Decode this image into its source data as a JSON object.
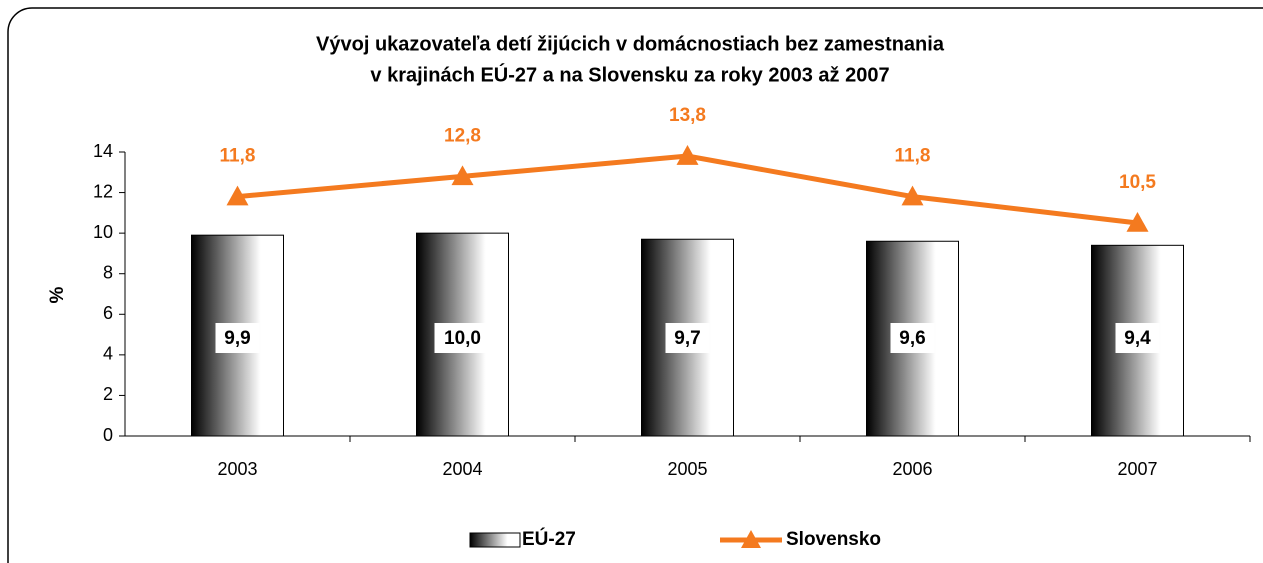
{
  "chart_data": {
    "type": "bar",
    "title": [
      "Vývoj ukazovateľa detí žijúcich v domácnostiach bez zamestnania",
      "v krajinách EÚ-27 a na Slovensku za roky 2003 až 2007"
    ],
    "y_label": "%",
    "categories": [
      "2003",
      "2004",
      "2005",
      "2006",
      "2007"
    ],
    "series": [
      {
        "name": "EÚ-27",
        "type": "bar",
        "color": "#000000",
        "values": [
          9.9,
          10.0,
          9.7,
          9.6,
          9.4
        ],
        "value_labels": [
          "9,9",
          "10,0",
          "9,7",
          "9,6",
          "9,4"
        ]
      },
      {
        "name": "Slovensko",
        "type": "line",
        "color": "#f47a1f",
        "values": [
          11.8,
          12.8,
          13.8,
          11.8,
          10.5
        ],
        "value_labels": [
          "11,8",
          "12,8",
          "13,8",
          "11,8",
          "10,5"
        ]
      }
    ],
    "ylim": [
      0,
      14
    ],
    "yticks": [
      0,
      2,
      4,
      6,
      8,
      10,
      12,
      14
    ],
    "legend": "bottom"
  }
}
